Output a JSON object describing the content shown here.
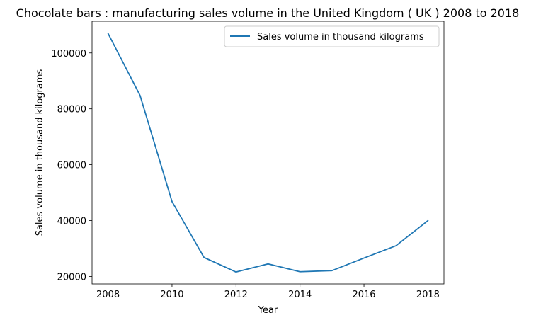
{
  "chart_data": {
    "type": "line",
    "title": "Chocolate bars : manufacturing sales volume in the United Kingdom ( UK ) 2008 to 2018",
    "xlabel": "Year",
    "ylabel": "Sales volume in thousand kilograms",
    "x": [
      2008,
      2009,
      2010,
      2011,
      2012,
      2013,
      2014,
      2015,
      2016,
      2017,
      2018
    ],
    "series": [
      {
        "name": "Sales volume in thousand kilograms",
        "color": "#1f77b4",
        "values": [
          107000,
          84800,
          46800,
          26800,
          21600,
          24500,
          21700,
          22100,
          26600,
          31000,
          40000
        ]
      }
    ],
    "xticks": [
      2008,
      2010,
      2012,
      2014,
      2016,
      2018
    ],
    "xtick_labels": [
      "2008",
      "2010",
      "2012",
      "2014",
      "2016",
      "2018"
    ],
    "yticks": [
      20000,
      40000,
      60000,
      80000,
      100000
    ],
    "ytick_labels": [
      "20000",
      "40000",
      "60000",
      "80000",
      "100000"
    ],
    "xlim": [
      2007.5,
      2018.5
    ],
    "ylim": [
      17330,
      111340
    ],
    "grid": false,
    "legend_position": "upper right"
  }
}
